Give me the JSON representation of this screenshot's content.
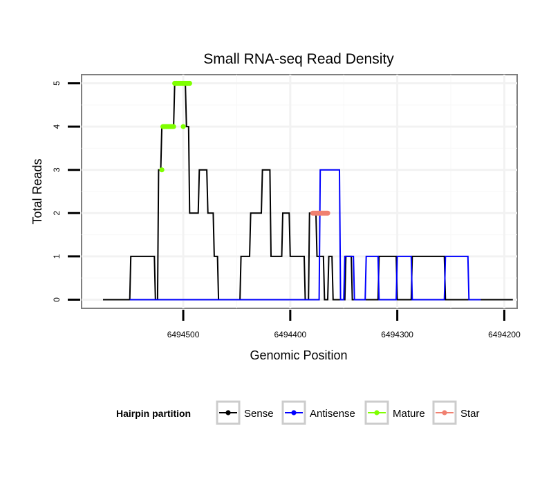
{
  "chart_data": {
    "type": "line",
    "title": "Small RNA-seq Read Density",
    "xlabel": "Genomic Position",
    "ylabel": "Total Reads",
    "xlim": [
      6494595,
      6494188
    ],
    "ylim": [
      -0.2,
      5.2
    ],
    "x_reversed": true,
    "xticks": [
      6494500,
      6494400,
      6494300,
      6494200
    ],
    "xtick_labels": [
      "6494500",
      "6494400",
      "6494300",
      "6494200"
    ],
    "yticks": [
      0,
      1,
      2,
      3,
      4,
      5
    ],
    "ytick_labels": [
      "0",
      "1",
      "2",
      "3",
      "4",
      "5"
    ],
    "legend": {
      "title": "Hairpin partition",
      "position": "bottom",
      "entries": [
        {
          "label": "Sense",
          "color": "#000000"
        },
        {
          "label": "Antisense",
          "color": "#0000ff"
        },
        {
          "label": "Mature",
          "color": "#7fff00"
        },
        {
          "label": "Star",
          "color": "#f08070"
        }
      ]
    },
    "series": [
      {
        "name": "Sense",
        "color": "#000000",
        "x": [
          6494575,
          6494550,
          6494549,
          6494527,
          6494526,
          6494524,
          6494523,
          6494521,
          6494520,
          6494509,
          6494508,
          6494502,
          6494501,
          6494500,
          6494499,
          6494498,
          6494497,
          6494495,
          6494494,
          6494486,
          6494485,
          6494478,
          6494477,
          6494472,
          6494471,
          6494468,
          6494467,
          6494447,
          6494446,
          6494438,
          6494437,
          6494427,
          6494426,
          6494419,
          6494418,
          6494408,
          6494407,
          6494401,
          6494400,
          6494387,
          6494386,
          6494383,
          6494382,
          6494376,
          6494375,
          6494369,
          6494368,
          6494365,
          6494364,
          6494361,
          6494360,
          6494349,
          6494348,
          6494343,
          6494342,
          6494318,
          6494317,
          6494301,
          6494300,
          6494287,
          6494286,
          6494256,
          6494255,
          6494192
        ],
        "y": [
          0,
          0,
          1,
          1,
          0,
          0,
          3,
          3,
          4,
          4,
          5,
          5,
          5,
          5,
          5,
          5,
          4,
          4,
          2,
          2,
          3,
          3,
          2,
          2,
          1,
          1,
          0,
          0,
          1,
          1,
          2,
          2,
          3,
          3,
          1,
          1,
          2,
          2,
          1,
          1,
          0,
          0,
          2,
          2,
          1,
          1,
          0,
          0,
          1,
          1,
          0,
          0,
          1,
          1,
          0,
          0,
          1,
          1,
          0,
          0,
          1,
          1,
          0,
          0
        ]
      },
      {
        "name": "Antisense",
        "color": "#0000ff",
        "x": [
          6494550,
          6494373,
          6494372,
          6494354,
          6494353,
          6494350,
          6494349,
          6494341,
          6494340,
          6494330,
          6494329,
          6494318,
          6494317,
          6494301,
          6494300,
          6494287,
          6494286,
          6494256,
          6494255,
          6494234,
          6494233,
          6494222
        ],
        "y": [
          0,
          0,
          3,
          3,
          0,
          0,
          1,
          1,
          0,
          0,
          1,
          1,
          0,
          0,
          1,
          1,
          0,
          0,
          1,
          1,
          0,
          0
        ]
      },
      {
        "name": "Mature",
        "color": "#7fff00",
        "x": [
          6494520,
          6494519,
          6494518,
          6494517,
          6494516,
          6494515,
          6494514,
          6494513,
          6494512,
          6494511,
          6494510,
          6494509,
          6494508,
          6494507,
          6494506,
          6494505,
          6494504,
          6494503,
          6494502,
          6494501,
          6494500,
          6494499,
          6494498,
          6494497,
          6494496,
          6494495,
          6494494,
          6494500
        ],
        "y": [
          3,
          4,
          4,
          4,
          4,
          4,
          4,
          4,
          4,
          4,
          4,
          4,
          5,
          5,
          5,
          5,
          5,
          5,
          5,
          5,
          5,
          5,
          5,
          5,
          5,
          5,
          5,
          4
        ]
      },
      {
        "name": "Star",
        "color": "#f08070",
        "x": [
          6494379,
          6494378,
          6494377,
          6494376,
          6494375,
          6494374,
          6494373,
          6494372,
          6494371,
          6494370,
          6494369,
          6494368,
          6494367,
          6494366,
          6494365
        ],
        "y": [
          2,
          2,
          2,
          2,
          2,
          2,
          2,
          2,
          2,
          2,
          2,
          2,
          2,
          2,
          2
        ]
      }
    ]
  }
}
